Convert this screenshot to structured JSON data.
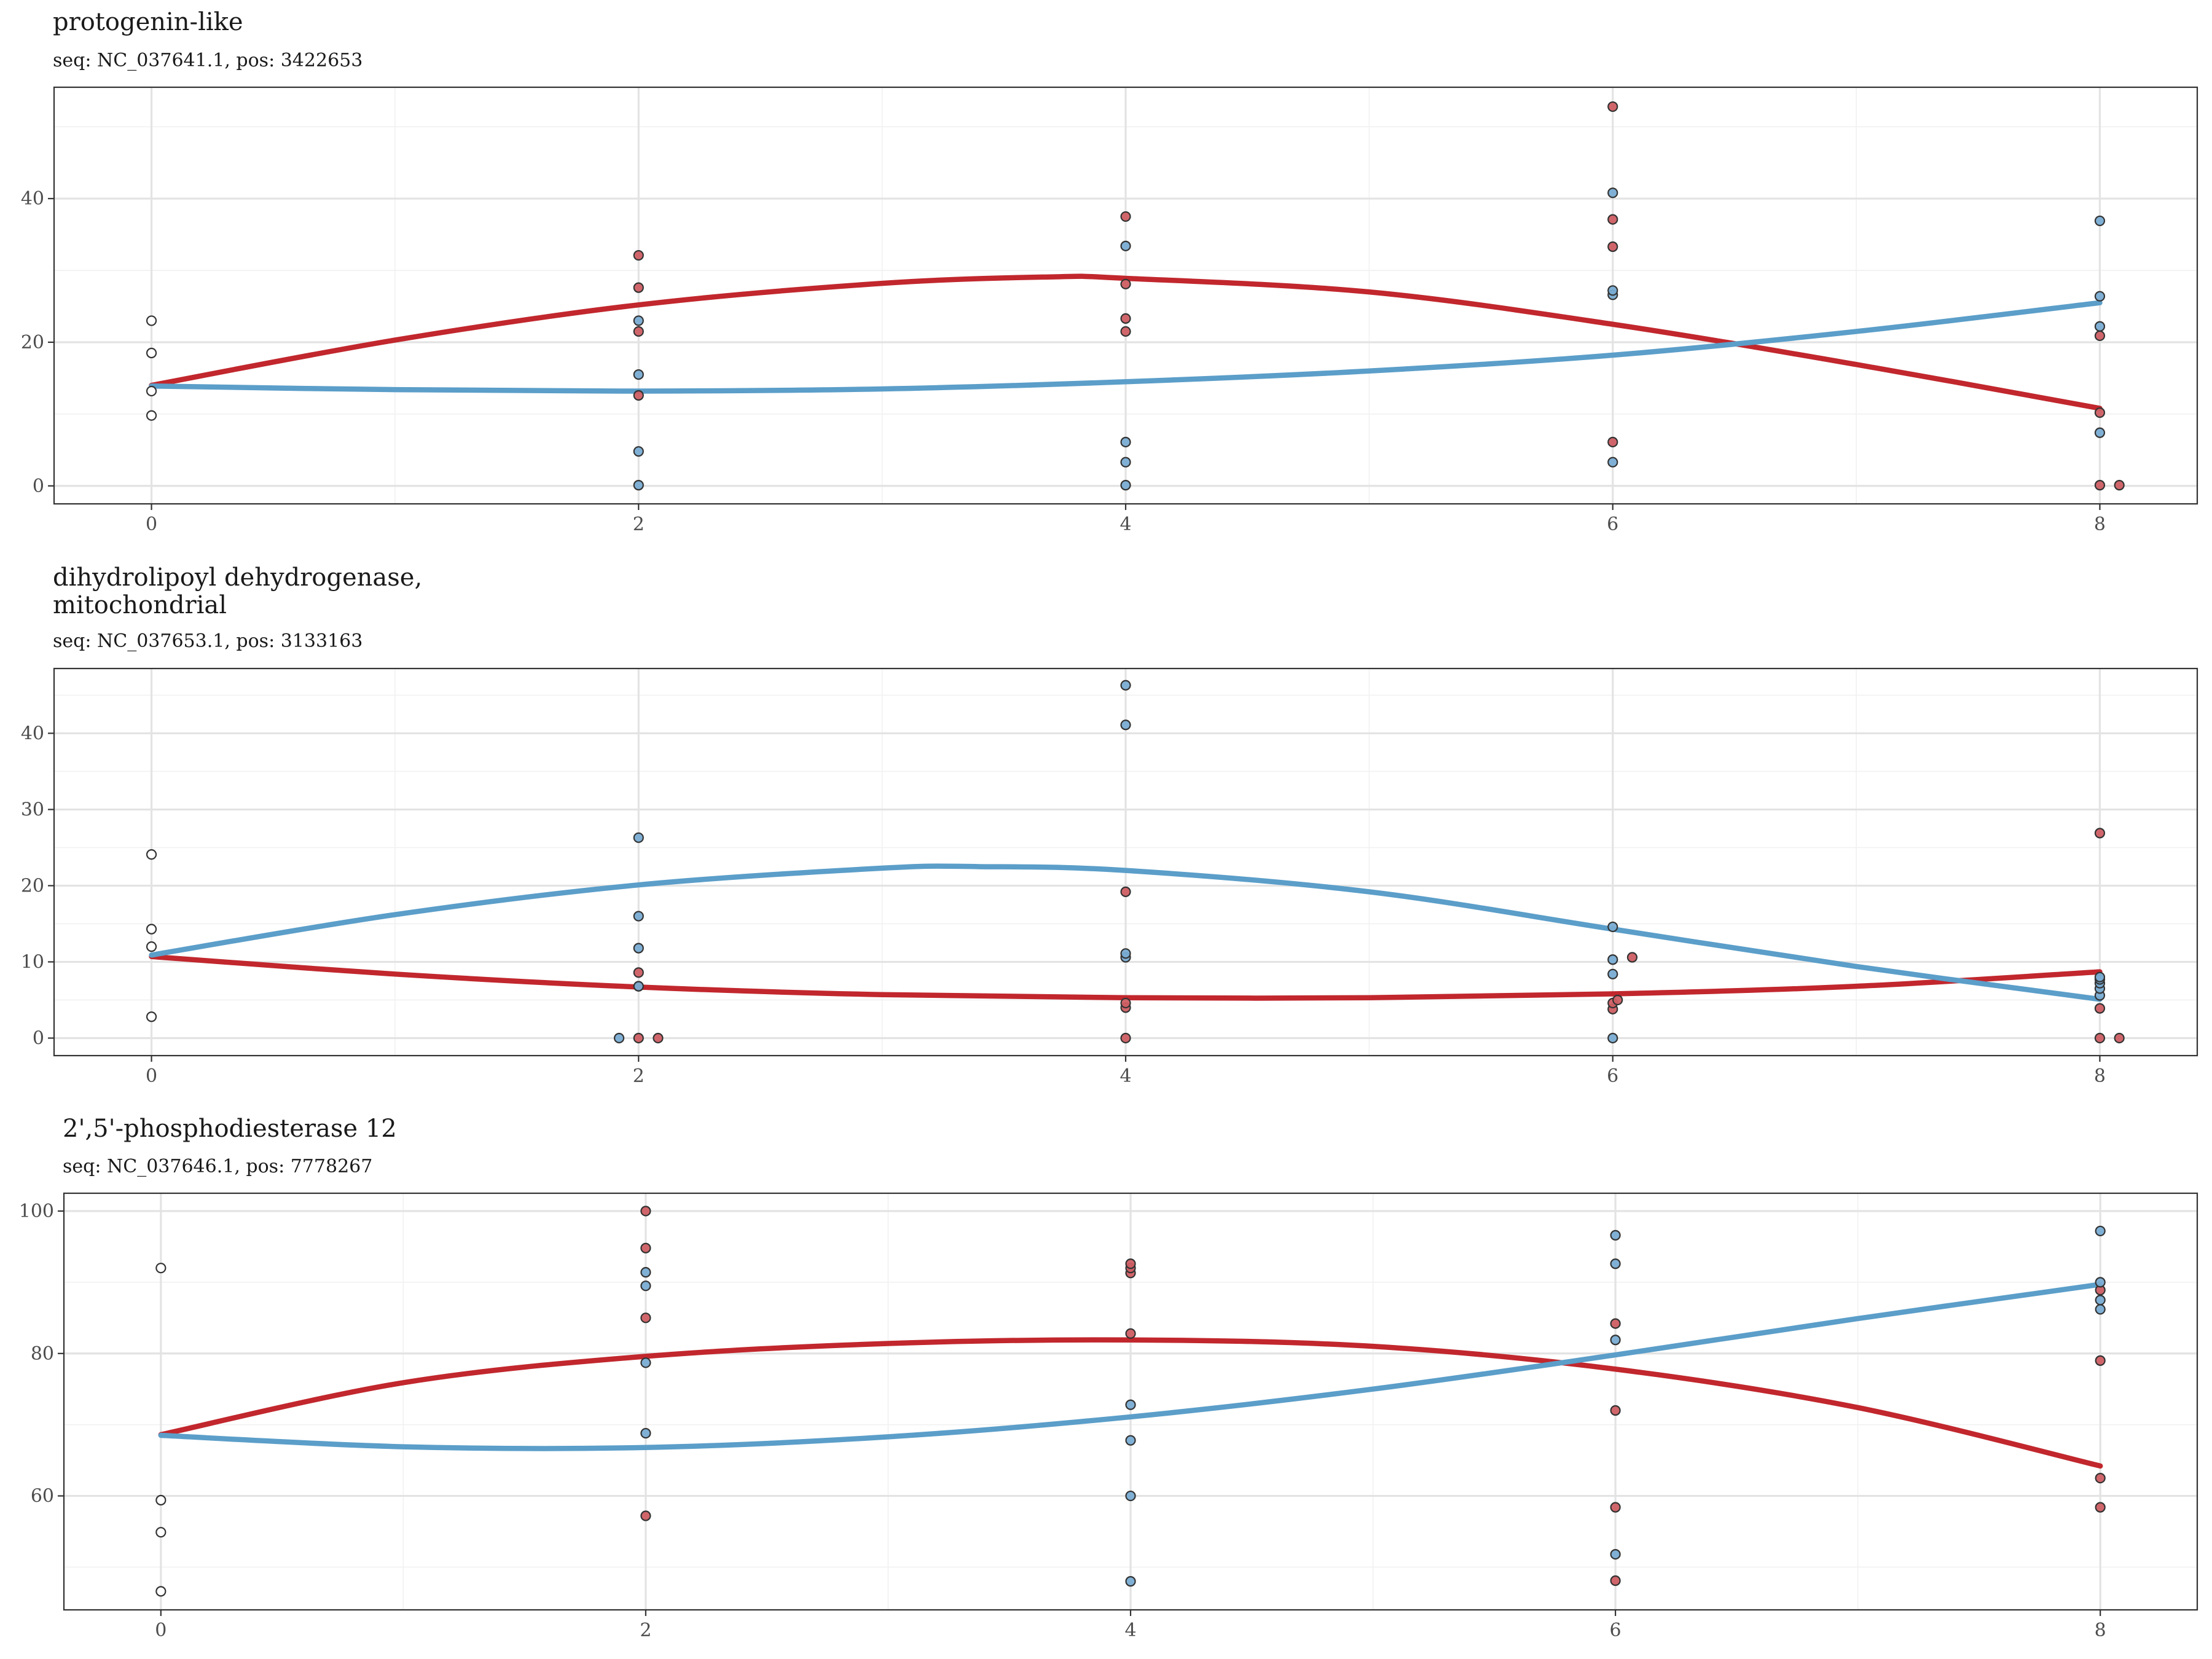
{
  "colors": {
    "red": "#c1272d",
    "blue": "#5b9ec9",
    "red_point": "#cd5e63",
    "blue_point": "#79acd3",
    "baseline_point": "#ffffff"
  },
  "chart_data": [
    {
      "type": "scatter",
      "title": "protogenin-like",
      "title_lines": [
        "protogenin-like"
      ],
      "subtitle": "seq: NC_037641.1, pos: 3422653",
      "xlim": [
        -0.4,
        8.4
      ],
      "ylim": [
        -2.5,
        55.5
      ],
      "x_ticks": [
        0,
        2,
        4,
        6,
        8
      ],
      "y_ticks": [
        0,
        20,
        40
      ],
      "y_minor": [
        10,
        30,
        50
      ],
      "points": {
        "baseline": [
          [
            0,
            9.8
          ],
          [
            0,
            13.2
          ],
          [
            0,
            18.5
          ],
          [
            0,
            23.0
          ]
        ],
        "red": [
          [
            2,
            12.6
          ],
          [
            2,
            21.5
          ],
          [
            2,
            27.6
          ],
          [
            2,
            32.1
          ],
          [
            4,
            21.5
          ],
          [
            4,
            23.3
          ],
          [
            4,
            28.1
          ],
          [
            4,
            37.5
          ],
          [
            6,
            6.1
          ],
          [
            6,
            33.3
          ],
          [
            6,
            37.1
          ],
          [
            6,
            52.8
          ],
          [
            8,
            0.1
          ],
          [
            8.08,
            0.1
          ],
          [
            8,
            10.2
          ],
          [
            8,
            20.9
          ]
        ],
        "blue": [
          [
            2,
            0.1
          ],
          [
            2,
            4.8
          ],
          [
            2,
            15.5
          ],
          [
            2,
            23.0
          ],
          [
            4,
            0.1
          ],
          [
            4,
            3.3
          ],
          [
            4,
            6.1
          ],
          [
            4,
            33.4
          ],
          [
            6,
            3.3
          ],
          [
            6,
            26.6
          ],
          [
            6,
            27.2
          ],
          [
            6,
            40.8
          ],
          [
            8,
            7.4
          ],
          [
            8,
            22.2
          ],
          [
            8,
            26.4
          ],
          [
            8,
            36.9
          ]
        ]
      },
      "curves": {
        "red": [
          [
            0,
            14.0
          ],
          [
            1,
            20.3
          ],
          [
            2,
            25.2
          ],
          [
            3,
            28.2
          ],
          [
            3.7,
            29.1
          ],
          [
            4,
            28.9
          ],
          [
            5,
            27.0
          ],
          [
            6,
            22.5
          ],
          [
            7,
            16.9
          ],
          [
            8,
            10.8
          ]
        ],
        "blue": [
          [
            0,
            13.9
          ],
          [
            1,
            13.4
          ],
          [
            2,
            13.2
          ],
          [
            3,
            13.5
          ],
          [
            4,
            14.5
          ],
          [
            5,
            16.0
          ],
          [
            6,
            18.2
          ],
          [
            7,
            21.5
          ],
          [
            8,
            25.5
          ]
        ]
      }
    },
    {
      "type": "scatter",
      "title": "dihydrolipoyl dehydrogenase, mitochondrial",
      "title_lines": [
        "dihydrolipoyl dehydrogenase,",
        "mitochondrial"
      ],
      "subtitle": "seq: NC_037653.1, pos: 3133163",
      "xlim": [
        -0.4,
        8.4
      ],
      "ylim": [
        -2.3,
        48.5
      ],
      "x_ticks": [
        0,
        2,
        4,
        6,
        8
      ],
      "y_ticks": [
        0,
        10,
        20,
        30,
        40
      ],
      "y_minor": [
        5,
        15,
        25,
        35,
        45
      ],
      "points": {
        "baseline": [
          [
            0,
            2.8
          ],
          [
            0,
            12.0
          ],
          [
            0,
            14.3
          ],
          [
            0,
            24.1
          ]
        ],
        "red": [
          [
            2,
            0
          ],
          [
            2.08,
            0
          ],
          [
            2,
            6.8
          ],
          [
            2,
            8.6
          ],
          [
            4,
            0
          ],
          [
            4,
            4.0
          ],
          [
            4,
            4.6
          ],
          [
            4,
            19.2
          ],
          [
            6,
            3.8
          ],
          [
            6,
            4.6
          ],
          [
            6.02,
            5.0
          ],
          [
            6.08,
            10.6
          ],
          [
            8,
            0
          ],
          [
            8.08,
            0
          ],
          [
            8,
            3.9
          ],
          [
            8,
            26.9
          ]
        ],
        "blue": [
          [
            1.92,
            0
          ],
          [
            2,
            6.8
          ],
          [
            2,
            11.8
          ],
          [
            2,
            16.0
          ],
          [
            2,
            26.3
          ],
          [
            4,
            10.6
          ],
          [
            4,
            11.1
          ],
          [
            4,
            41.1
          ],
          [
            4,
            46.3
          ],
          [
            6,
            0
          ],
          [
            6,
            8.4
          ],
          [
            6,
            10.3
          ],
          [
            6,
            14.6
          ],
          [
            8,
            5.6
          ],
          [
            8,
            6.5
          ],
          [
            8,
            7.2
          ],
          [
            8,
            7.7
          ],
          [
            8,
            8.0
          ]
        ]
      },
      "curves": {
        "red": [
          [
            0,
            10.7
          ],
          [
            1,
            8.4
          ],
          [
            2,
            6.7
          ],
          [
            3,
            5.7
          ],
          [
            4,
            5.3
          ],
          [
            5,
            5.3
          ],
          [
            6,
            5.8
          ],
          [
            7,
            6.8
          ],
          [
            8,
            8.7
          ]
        ],
        "blue": [
          [
            0,
            10.9
          ],
          [
            1,
            16.2
          ],
          [
            2,
            20.1
          ],
          [
            3,
            22.3
          ],
          [
            3.4,
            22.5
          ],
          [
            4,
            22.0
          ],
          [
            5,
            19.2
          ],
          [
            6,
            14.3
          ],
          [
            7,
            9.4
          ],
          [
            8,
            5.1
          ]
        ]
      }
    },
    {
      "type": "scatter",
      "title": "2',5'-phosphodiesterase 12",
      "title_lines": [
        "2',5'-phosphodiesterase 12"
      ],
      "subtitle": "seq: NC_037646.1, pos: 7778267",
      "xlim": [
        -0.4,
        8.4
      ],
      "ylim": [
        44.0,
        102.5
      ],
      "x_ticks": [
        0,
        2,
        4,
        6,
        8
      ],
      "y_ticks": [
        60,
        80,
        100
      ],
      "y_minor": [
        50,
        70,
        90
      ],
      "points": {
        "baseline": [
          [
            0,
            46.6
          ],
          [
            0,
            54.9
          ],
          [
            0,
            59.4
          ],
          [
            0,
            92.0
          ]
        ],
        "red": [
          [
            2,
            57.2
          ],
          [
            2,
            85.0
          ],
          [
            2,
            94.8
          ],
          [
            2,
            100.0
          ],
          [
            4,
            82.8
          ],
          [
            4,
            91.3
          ],
          [
            4,
            92.0
          ],
          [
            4,
            92.6
          ],
          [
            6,
            48.1
          ],
          [
            6,
            58.4
          ],
          [
            6,
            72.0
          ],
          [
            6,
            84.2
          ],
          [
            8,
            58.4
          ],
          [
            8,
            62.5
          ],
          [
            8,
            79.0
          ],
          [
            8,
            88.9
          ]
        ],
        "blue": [
          [
            2,
            68.8
          ],
          [
            2,
            78.7
          ],
          [
            2,
            89.5
          ],
          [
            2,
            91.4
          ],
          [
            4,
            48.0
          ],
          [
            4,
            60.0
          ],
          [
            4,
            67.8
          ],
          [
            4,
            72.8
          ],
          [
            6,
            51.8
          ],
          [
            6,
            81.9
          ],
          [
            6,
            92.6
          ],
          [
            6,
            96.6
          ],
          [
            8,
            86.2
          ],
          [
            8,
            87.5
          ],
          [
            8,
            90.0
          ],
          [
            8,
            97.2
          ]
        ]
      },
      "curves": {
        "red": [
          [
            0,
            68.6
          ],
          [
            1,
            75.9
          ],
          [
            2,
            79.6
          ],
          [
            3,
            81.4
          ],
          [
            4,
            81.9
          ],
          [
            5,
            81.0
          ],
          [
            6,
            77.8
          ],
          [
            7,
            72.4
          ],
          [
            8,
            64.2
          ]
        ],
        "blue": [
          [
            0,
            68.5
          ],
          [
            1,
            66.9
          ],
          [
            2,
            66.8
          ],
          [
            3,
            68.3
          ],
          [
            4,
            71.1
          ],
          [
            5,
            75.0
          ],
          [
            6,
            79.8
          ],
          [
            7,
            84.9
          ],
          [
            8,
            89.7
          ]
        ]
      }
    }
  ]
}
